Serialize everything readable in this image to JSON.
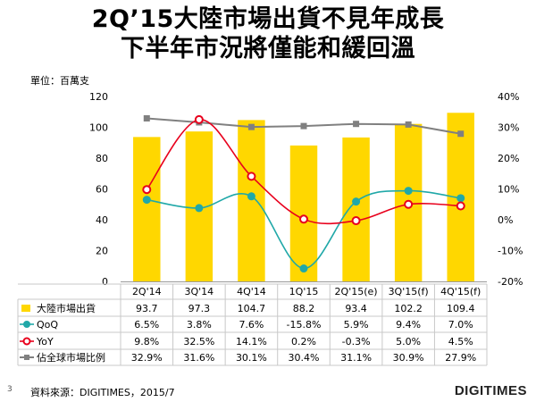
{
  "title_line1": "2Q’15大陸市場出貨不見年成長",
  "title_line2": "下半年市況將僅能和緩回溫",
  "unit_label": "單位：百萬支",
  "source_label": "資料來源：DIGITIMES，2015/7",
  "page_number": "3",
  "logo_text": "DIGITIMES",
  "colors": {
    "bar": "#FFD700",
    "qoq": "#20A8A8",
    "yoy": "#E8001C",
    "share": "#808080"
  },
  "chart_data": {
    "type": "bar",
    "categories": [
      "2Q'14",
      "3Q'14",
      "4Q'14",
      "1Q'15",
      "2Q'15(e)",
      "3Q'15(f)",
      "4Q'15(f)"
    ],
    "y_left": {
      "min": 0,
      "max": 120,
      "ticks": [
        0,
        20,
        40,
        60,
        80,
        100,
        120
      ]
    },
    "y_right": {
      "min": -20,
      "max": 40,
      "ticks": [
        -20,
        -10,
        0,
        10,
        20,
        30,
        40
      ],
      "suffix": "%"
    },
    "series": [
      {
        "name": "大陸市場出貨",
        "kind": "bar",
        "axis": "left",
        "values": [
          93.7,
          97.3,
          104.7,
          88.2,
          93.4,
          102.2,
          109.4
        ],
        "labels": [
          "93.7",
          "97.3",
          "104.7",
          "88.2",
          "93.4",
          "102.2",
          "109.4"
        ]
      },
      {
        "name": "QoQ",
        "kind": "line",
        "axis": "right",
        "smooth": true,
        "values": [
          6.5,
          3.8,
          7.6,
          -15.8,
          5.9,
          9.4,
          7.0
        ],
        "labels": [
          "6.5%",
          "3.8%",
          "7.6%",
          "-15.8%",
          "5.9%",
          "9.4%",
          "7.0%"
        ]
      },
      {
        "name": "YoY",
        "kind": "line",
        "axis": "right",
        "smooth": true,
        "values": [
          9.8,
          32.5,
          14.1,
          0.2,
          -0.3,
          5.0,
          4.5
        ],
        "labels": [
          "9.8%",
          "32.5%",
          "14.1%",
          "0.2%",
          "-0.3%",
          "5.0%",
          "4.5%"
        ]
      },
      {
        "name": "佔全球市場比例",
        "kind": "line",
        "axis": "right",
        "smooth": false,
        "values": [
          32.9,
          31.6,
          30.1,
          30.4,
          31.1,
          30.9,
          27.9
        ],
        "labels": [
          "32.9%",
          "31.6%",
          "30.1%",
          "30.4%",
          "31.1%",
          "30.9%",
          "27.9%"
        ]
      }
    ]
  }
}
